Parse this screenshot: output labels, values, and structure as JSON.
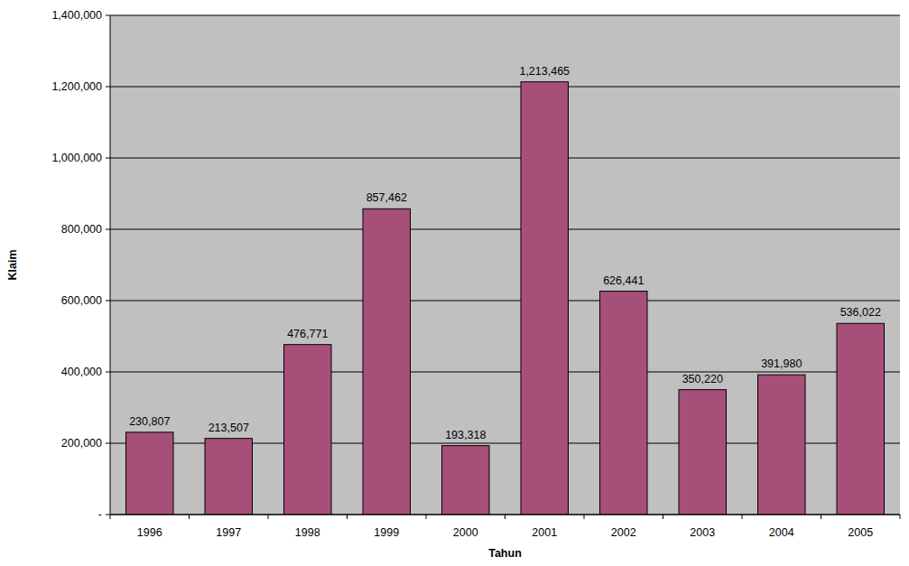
{
  "chart_data": {
    "type": "bar",
    "x_label": "Tahun",
    "y_label": "Klaim",
    "categories": [
      "1996",
      "1997",
      "1998",
      "1999",
      "2000",
      "2001",
      "2002",
      "2003",
      "2004",
      "2005"
    ],
    "values": [
      230807,
      213507,
      476771,
      857462,
      193318,
      1213465,
      626441,
      350220,
      391980,
      536022
    ],
    "value_labels": [
      "230,807",
      "213,507",
      "476,771",
      "857,462",
      "193,318",
      "1,213,465",
      "626,441",
      "350,220",
      "391,980",
      "536,022"
    ],
    "color": "#a64f79",
    "ylim": [
      0,
      1400000
    ],
    "yticks": [
      {
        "value": 0,
        "label": "-"
      },
      {
        "value": 200000,
        "label": "200,000"
      },
      {
        "value": 400000,
        "label": "400,000"
      },
      {
        "value": 600000,
        "label": "600,000"
      },
      {
        "value": 800000,
        "label": "800,000"
      },
      {
        "value": 1000000,
        "label": "1,000,000"
      },
      {
        "value": 1200000,
        "label": "1,200,000"
      },
      {
        "value": 1400000,
        "label": "1,400,000"
      }
    ],
    "grid": true,
    "data_labels": true
  }
}
